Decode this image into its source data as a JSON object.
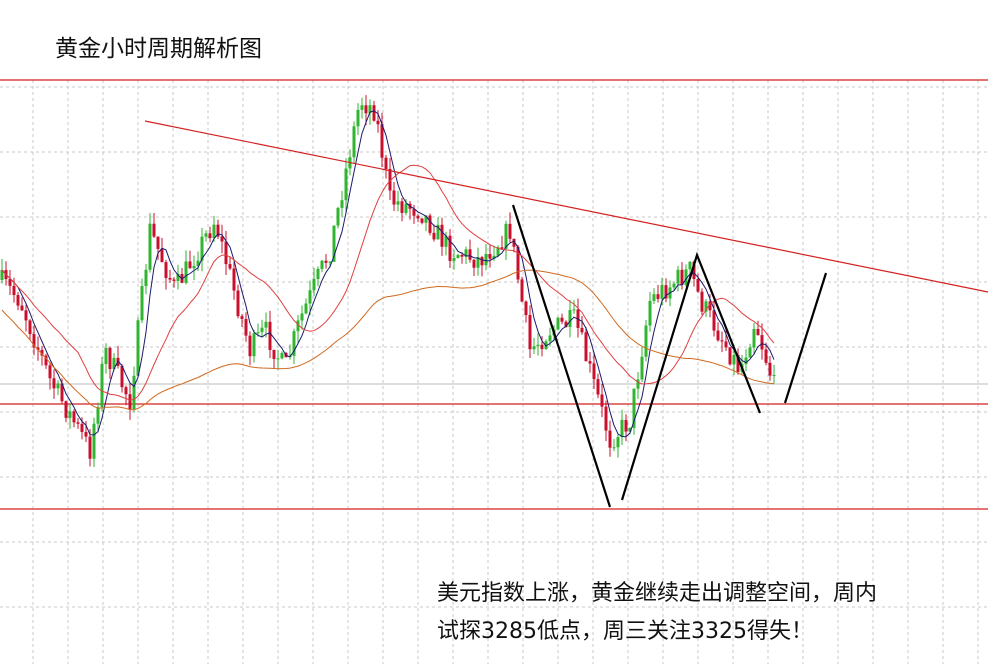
{
  "chart_data": {
    "type": "candlestick",
    "title": "黄金小时周期解析图",
    "annotation": [
      "美元指数上涨，黄金继续走出调整空间，周内",
      "试探3285低点，周三关注3325得失！"
    ]
  }
}
